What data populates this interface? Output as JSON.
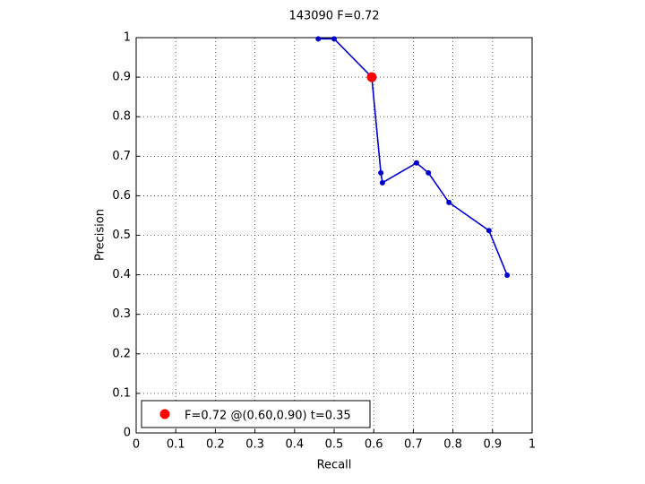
{
  "chart_data": {
    "type": "scatter-line",
    "title": "143090 F=0.72",
    "x_label": "Recall",
    "y_label": "Precision",
    "xlim": [
      0,
      1
    ],
    "ylim": [
      0,
      1
    ],
    "xticks": [
      0,
      0.1,
      0.2,
      0.3,
      0.4,
      0.5,
      0.6,
      0.7,
      0.8,
      0.9,
      1
    ],
    "yticks": [
      0,
      0.1,
      0.2,
      0.3,
      0.4,
      0.5,
      0.6,
      0.7,
      0.8,
      0.9,
      1
    ],
    "grid": true,
    "legend": "lower-left",
    "series": [
      {
        "color": "#0000cc",
        "x": [
          0.46,
          0.5,
          0.595,
          0.618,
          0.622,
          0.708,
          0.738,
          0.79,
          0.891,
          0.937
        ],
        "values": [
          0.997,
          0.997,
          0.9,
          0.658,
          0.633,
          0.683,
          0.658,
          0.583,
          0.512,
          0.399
        ]
      },
      {
        "name": "F=0.72 @(0.60,0.90) t=0.35",
        "color": "#ff0000",
        "x": [
          0.595
        ],
        "values": [
          0.9
        ]
      }
    ]
  }
}
